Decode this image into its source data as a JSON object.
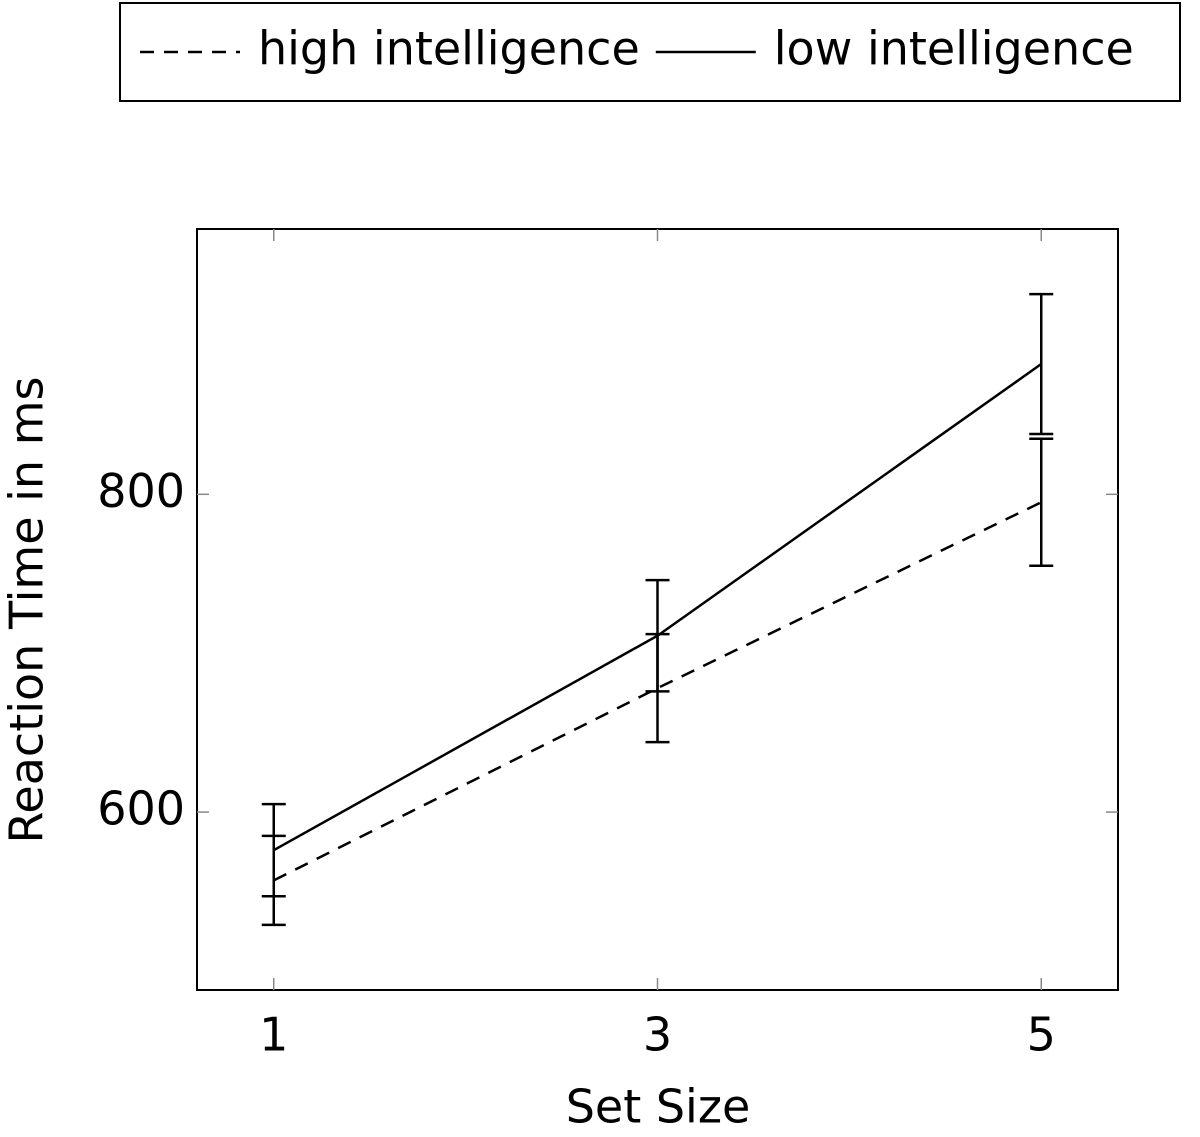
{
  "chart_data": {
    "type": "line",
    "x_label": "Set Size",
    "y_label": "Reaction Time in ms",
    "x": [
      1,
      3,
      5
    ],
    "series": [
      {
        "name": "high intelligence",
        "color": "#000000",
        "line_style": "dashed",
        "values": [
          557,
          678,
          795
        ],
        "errors": [
          28,
          34,
          40
        ]
      },
      {
        "name": "low intelligence",
        "color": "#000000",
        "line_style": "solid",
        "values": [
          576,
          711,
          882
        ],
        "errors": [
          29,
          35,
          44
        ]
      }
    ],
    "xlim": [
      0.6,
      5.4
    ],
    "ylim": [
      488,
      967
    ],
    "xticks": [
      1,
      3,
      5
    ],
    "yticks": [
      600,
      800
    ],
    "grid": false,
    "legend_position": "top"
  }
}
